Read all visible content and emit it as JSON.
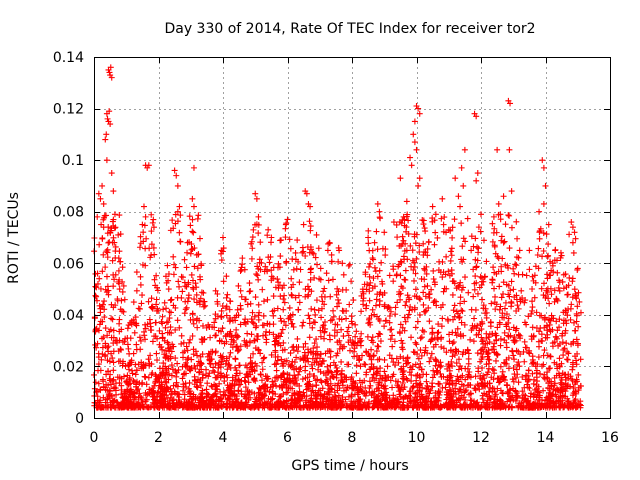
{
  "chart_data": {
    "type": "scatter",
    "title": "Day 330 of 2014, Rate Of TEC Index for receiver tor2",
    "xlabel": "GPS time / hours",
    "ylabel": "ROTI / TECUs",
    "xlim": [
      0,
      16
    ],
    "ylim": [
      0,
      0.14
    ],
    "x_ticks": [
      0,
      2,
      4,
      6,
      8,
      10,
      12,
      14,
      16
    ],
    "x_tick_labels": [
      "0",
      "2",
      "4",
      "6",
      "8",
      "10",
      "12",
      "14",
      "16"
    ],
    "y_ticks": [
      0,
      0.02,
      0.04,
      0.06,
      0.08,
      0.1,
      0.12,
      0.14
    ],
    "y_tick_labels": [
      "0",
      "0.02",
      "0.04",
      "0.06",
      "0.08",
      "0.1",
      "0.12",
      "0.14"
    ],
    "grid": true,
    "legend": "none",
    "marker": "plus",
    "color": "#ff0000",
    "data_range_hours": [
      0,
      15.1
    ],
    "series": [
      {
        "name": "ROTI",
        "points": [
          [
            0.45,
            0.135
          ],
          [
            0.48,
            0.134
          ],
          [
            0.5,
            0.133
          ],
          [
            0.52,
            0.136
          ],
          [
            0.55,
            0.132
          ],
          [
            0.4,
            0.118
          ],
          [
            0.42,
            0.116
          ],
          [
            0.45,
            0.115
          ],
          [
            0.47,
            0.119
          ],
          [
            0.5,
            0.114
          ],
          [
            0.35,
            0.108
          ],
          [
            0.38,
            0.11
          ],
          [
            0.4,
            0.1
          ],
          [
            0.15,
            0.087
          ],
          [
            0.2,
            0.085
          ],
          [
            0.25,
            0.09
          ],
          [
            0.3,
            0.083
          ],
          [
            0.55,
            0.095
          ],
          [
            0.6,
            0.088
          ],
          [
            0.1,
            0.078
          ],
          [
            0.22,
            0.075
          ],
          [
            0.3,
            0.074
          ],
          [
            0.5,
            0.072
          ],
          [
            0.65,
            0.079
          ],
          [
            0.75,
            0.071
          ],
          [
            1.6,
            0.098
          ],
          [
            1.65,
            0.097
          ],
          [
            1.7,
            0.098
          ],
          [
            1.55,
            0.082
          ],
          [
            1.6,
            0.078
          ],
          [
            1.5,
            0.075
          ],
          [
            2.5,
            0.096
          ],
          [
            2.55,
            0.094
          ],
          [
            2.6,
            0.09
          ],
          [
            2.65,
            0.082
          ],
          [
            2.6,
            0.08
          ],
          [
            3.1,
            0.097
          ],
          [
            3.05,
            0.085
          ],
          [
            3.1,
            0.082
          ],
          [
            2.9,
            0.068
          ],
          [
            4.0,
            0.07
          ],
          [
            3.95,
            0.065
          ],
          [
            4.6,
            0.062
          ],
          [
            5.0,
            0.087
          ],
          [
            5.05,
            0.085
          ],
          [
            5.1,
            0.078
          ],
          [
            5.4,
            0.073
          ],
          [
            5.5,
            0.07
          ],
          [
            5.8,
            0.069
          ],
          [
            6.0,
            0.077
          ],
          [
            5.95,
            0.075
          ],
          [
            6.25,
            0.064
          ],
          [
            6.3,
            0.069
          ],
          [
            6.55,
            0.088
          ],
          [
            6.6,
            0.087
          ],
          [
            6.65,
            0.083
          ],
          [
            6.7,
            0.082
          ],
          [
            6.5,
            0.075
          ],
          [
            6.9,
            0.071
          ],
          [
            7.3,
            0.068
          ],
          [
            7.6,
            0.065
          ],
          [
            7.7,
            0.06
          ],
          [
            7.9,
            0.059
          ],
          [
            8.5,
            0.07
          ],
          [
            8.7,
            0.068
          ],
          [
            8.8,
            0.083
          ],
          [
            8.85,
            0.08
          ],
          [
            9.0,
            0.072
          ],
          [
            9.3,
            0.076
          ],
          [
            9.5,
            0.093
          ],
          [
            9.6,
            0.078
          ],
          [
            9.7,
            0.084
          ],
          [
            9.8,
            0.101
          ],
          [
            9.85,
            0.098
          ],
          [
            9.9,
            0.11
          ],
          [
            9.95,
            0.115
          ],
          [
            10.0,
            0.121
          ],
          [
            10.05,
            0.12
          ],
          [
            10.1,
            0.118
          ],
          [
            9.95,
            0.107
          ],
          [
            10.0,
            0.104
          ],
          [
            10.05,
            0.09
          ],
          [
            10.1,
            0.093
          ],
          [
            9.7,
            0.065
          ],
          [
            10.5,
            0.082
          ],
          [
            10.6,
            0.079
          ],
          [
            10.8,
            0.085
          ],
          [
            11.0,
            0.073
          ],
          [
            11.2,
            0.093
          ],
          [
            11.3,
            0.086
          ],
          [
            11.4,
            0.097
          ],
          [
            11.5,
            0.104
          ],
          [
            11.45,
            0.09
          ],
          [
            11.35,
            0.082
          ],
          [
            11.8,
            0.118
          ],
          [
            11.85,
            0.117
          ],
          [
            11.9,
            0.095
          ],
          [
            11.85,
            0.092
          ],
          [
            12.0,
            0.079
          ],
          [
            12.4,
            0.078
          ],
          [
            12.5,
            0.104
          ],
          [
            12.55,
            0.083
          ],
          [
            12.6,
            0.079
          ],
          [
            12.7,
            0.086
          ],
          [
            12.85,
            0.123
          ],
          [
            12.9,
            0.122
          ],
          [
            12.88,
            0.104
          ],
          [
            12.95,
            0.088
          ],
          [
            12.7,
            0.068
          ],
          [
            13.2,
            0.065
          ],
          [
            13.5,
            0.065
          ],
          [
            13.8,
            0.08
          ],
          [
            13.9,
            0.1
          ],
          [
            13.95,
            0.097
          ],
          [
            14.0,
            0.09
          ],
          [
            13.95,
            0.083
          ],
          [
            14.1,
            0.075
          ],
          [
            14.3,
            0.065
          ],
          [
            14.5,
            0.063
          ],
          [
            14.8,
            0.076
          ],
          [
            14.85,
            0.074
          ],
          [
            14.9,
            0.072
          ],
          [
            14.85,
            0.068
          ],
          [
            15.0,
            0.058
          ],
          [
            15.05,
            0.045
          ]
        ]
      }
    ]
  }
}
